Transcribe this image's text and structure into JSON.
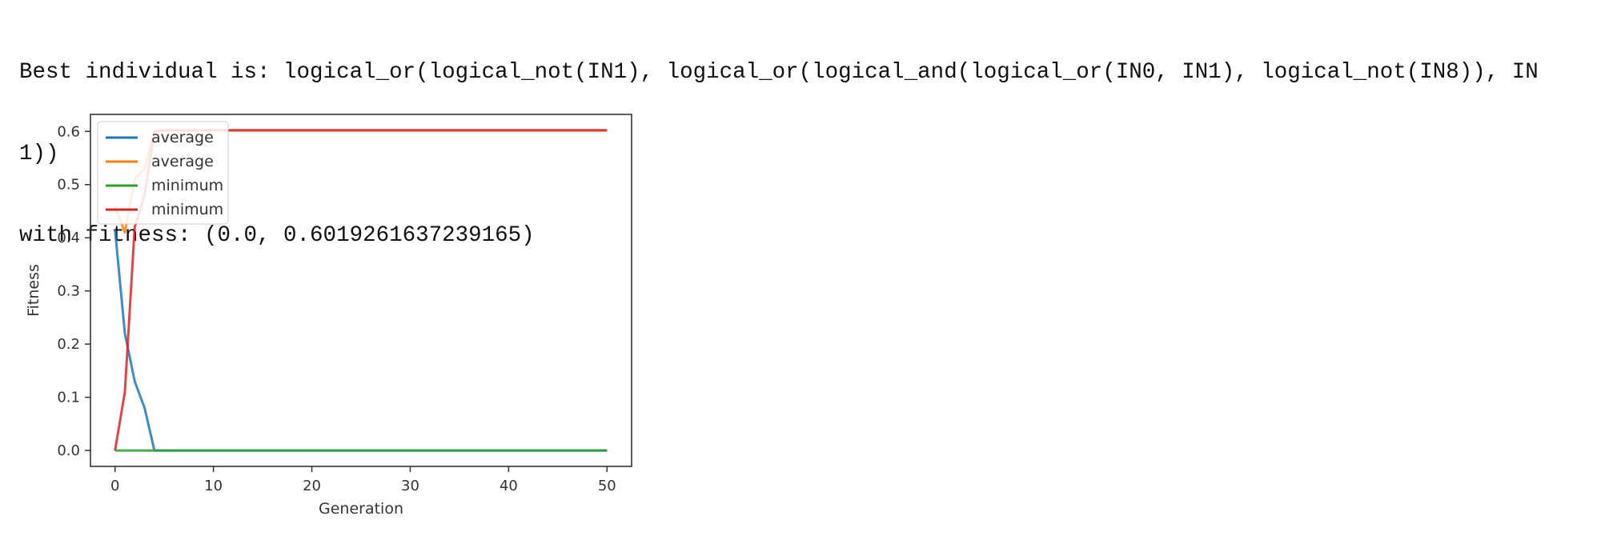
{
  "output": {
    "line1": "Best individual is: logical_or(logical_not(IN1), logical_or(logical_and(logical_or(IN0, IN1), logical_not(IN8)), IN",
    "line2": "1))",
    "line3": "with fitness: (0.0, 0.6019261637239165)"
  },
  "chart_data": {
    "type": "line",
    "title": "",
    "xlabel": "Generation",
    "ylabel": "Fitness",
    "xlim": [
      -2.5,
      52.5
    ],
    "ylim": [
      -0.03,
      0.632
    ],
    "x_ticks": [
      "0",
      "10",
      "20",
      "30",
      "40",
      "50"
    ],
    "y_ticks": [
      "0.0",
      "0.1",
      "0.2",
      "0.3",
      "0.4",
      "0.5",
      "0.6"
    ],
    "grid": false,
    "legend_position": "upper left",
    "series": [
      {
        "name": "average",
        "color": "#1f77b4",
        "x": [
          0,
          1,
          2,
          3,
          4,
          5,
          50
        ],
        "y": [
          0.415,
          0.22,
          0.13,
          0.08,
          0.0,
          0.0,
          0.0
        ]
      },
      {
        "name": "average",
        "color": "#ff7f0e",
        "x": [
          0,
          1,
          2,
          3,
          4,
          5,
          50
        ],
        "y": [
          0.46,
          0.41,
          0.51,
          0.53,
          0.6,
          0.602,
          0.602
        ]
      },
      {
        "name": "minimum",
        "color": "#2ca02c",
        "x": [
          0,
          50
        ],
        "y": [
          0.0,
          0.0
        ]
      },
      {
        "name": "minimum",
        "color": "#d62728",
        "x": [
          0,
          1,
          2,
          3,
          4,
          5,
          50
        ],
        "y": [
          0.0,
          0.11,
          0.42,
          0.48,
          0.6,
          0.602,
          0.602
        ]
      }
    ]
  }
}
